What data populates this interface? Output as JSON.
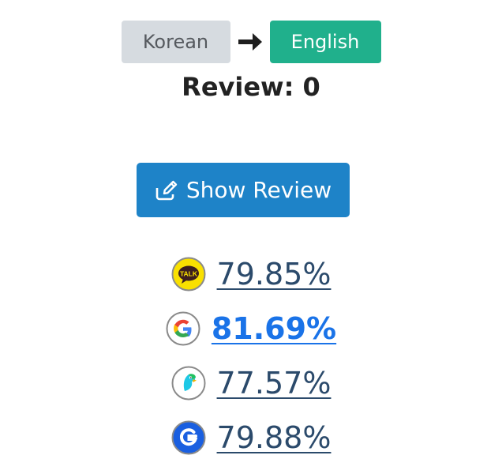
{
  "language": {
    "source_label": "Korean",
    "target_label": "English",
    "arrow_icon": "arrow-right-icon"
  },
  "review": {
    "count_text": "Review: 0",
    "button_label": "Show Review",
    "button_icon": "edit-icon"
  },
  "engines": [
    {
      "name": "kakao",
      "icon": "kakao-talk-icon",
      "score": "79.85%",
      "best": false
    },
    {
      "name": "google",
      "icon": "google-icon",
      "score": "81.69%",
      "best": true
    },
    {
      "name": "papago",
      "icon": "papago-icon",
      "score": "77.57%",
      "best": false
    },
    {
      "name": "genie",
      "icon": "genie-icon",
      "score": "79.88%",
      "best": false
    }
  ],
  "colors": {
    "source_bg": "#d6dbe0",
    "target_bg": "#20b08c",
    "button_bg": "#1e83c8",
    "link": "#2b4a6b",
    "best_link": "#1a73e8"
  }
}
